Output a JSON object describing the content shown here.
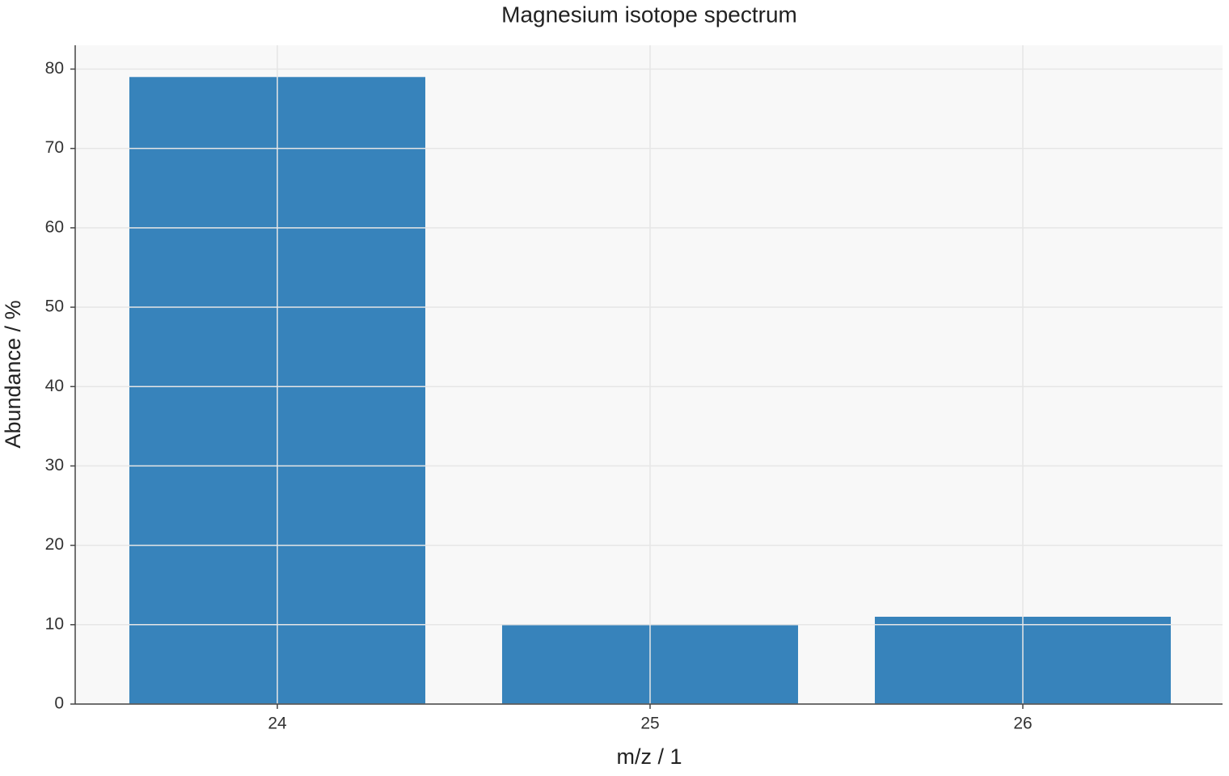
{
  "chart_data": {
    "type": "bar",
    "title": "Magnesium isotope spectrum",
    "x_label": "m/z / 1",
    "y_label": "Abundance / %",
    "categories": [
      "24",
      "25",
      "26"
    ],
    "values": [
      79,
      10,
      11
    ],
    "color": "#3783bb",
    "ylim": [
      0,
      83
    ],
    "yticks": [
      0,
      10,
      20,
      30,
      40,
      50,
      60,
      70,
      80
    ],
    "grid": true
  }
}
